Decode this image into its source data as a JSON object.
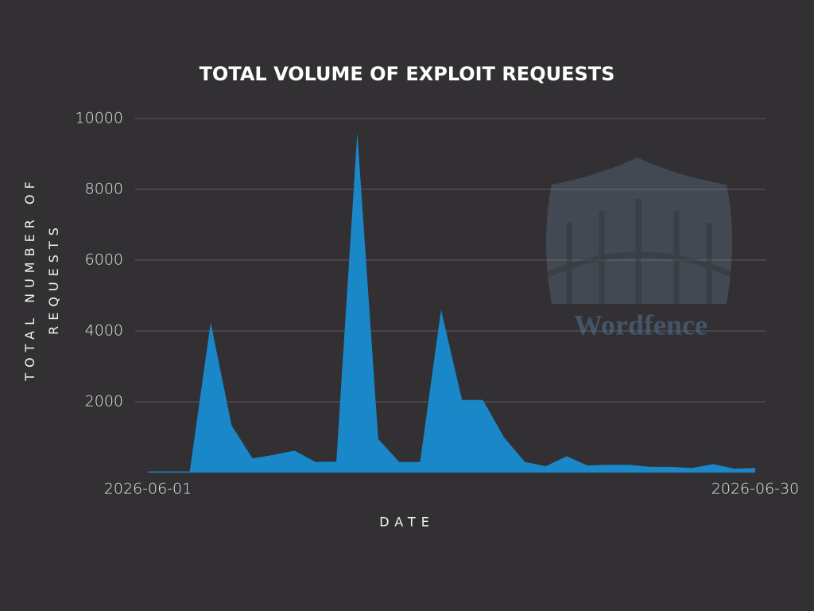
{
  "chart_data": {
    "type": "area",
    "title": "TOTAL VOLUME OF EXPLOIT REQUESTS",
    "x_label": "DATE",
    "y_label": "TOTAL NUMBER OF REQUESTS",
    "watermark": "Wordfence",
    "categories": [
      "2026-06-01",
      null,
      null,
      null,
      null,
      null,
      null,
      null,
      null,
      null,
      null,
      null,
      null,
      null,
      null,
      null,
      null,
      null,
      null,
      null,
      null,
      null,
      null,
      null,
      null,
      null,
      null,
      null,
      null,
      "2026-06-30"
    ],
    "values": [
      30,
      30,
      30,
      4240,
      1330,
      400,
      500,
      620,
      300,
      310,
      9600,
      950,
      300,
      300,
      4600,
      2050,
      2050,
      1000,
      300,
      180,
      460,
      200,
      220,
      220,
      160,
      160,
      130,
      240,
      110,
      130
    ],
    "color": "#1a87c9",
    "ylim": [
      0,
      10000
    ],
    "yticks": [
      2000,
      4000,
      6000,
      8000,
      10000
    ],
    "grid": true
  }
}
